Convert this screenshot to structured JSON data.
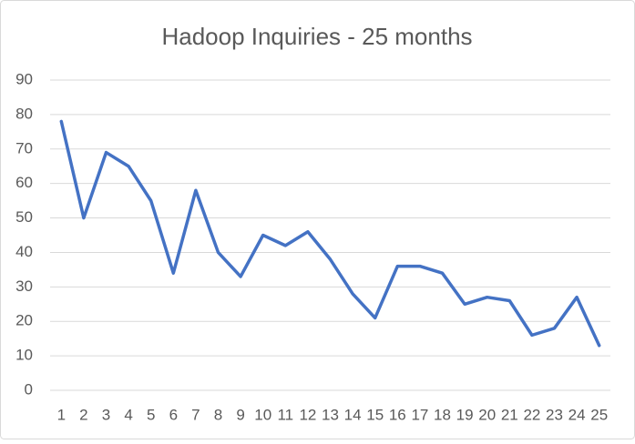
{
  "chart_data": {
    "type": "line",
    "title": "Hadoop Inquiries - 25 months",
    "categories": [
      "1",
      "2",
      "3",
      "4",
      "5",
      "6",
      "7",
      "8",
      "9",
      "10",
      "11",
      "12",
      "13",
      "14",
      "15",
      "16",
      "17",
      "18",
      "19",
      "20",
      "21",
      "22",
      "23",
      "24",
      "25"
    ],
    "series": [
      {
        "color": "#4472c4",
        "values": [
          78,
          50,
          69,
          65,
          55,
          34,
          58,
          40,
          33,
          45,
          42,
          46,
          38,
          28,
          21,
          36,
          36,
          34,
          25,
          27,
          26,
          16,
          18,
          27,
          13
        ]
      }
    ],
    "ylim": [
      0,
      90
    ],
    "yticks": [
      0,
      10,
      20,
      30,
      40,
      50,
      60,
      70,
      80,
      90
    ],
    "grid": true
  }
}
